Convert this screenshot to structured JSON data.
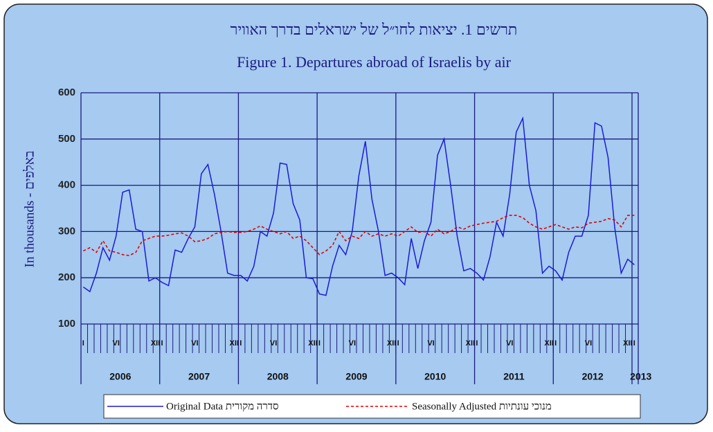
{
  "chart_data": {
    "type": "line",
    "title_he": "תרשים 1. יציאות לחו״ל של ישראלים בדרך האוויר",
    "title": "Figure 1. Departures abroad of Israelis by air",
    "y_label": "In thousands - באלפים",
    "categories": [
      "I",
      null,
      null,
      null,
      null,
      "VI",
      null,
      null,
      null,
      null,
      null,
      "XII",
      "I",
      null,
      null,
      null,
      null,
      "VI",
      null,
      null,
      null,
      null,
      null,
      "XII",
      "I",
      null,
      null,
      null,
      null,
      "VI",
      null,
      null,
      null,
      null,
      null,
      "XII",
      "I",
      null,
      null,
      null,
      null,
      "VI",
      null,
      null,
      null,
      null,
      null,
      "XII",
      "I",
      null,
      null,
      null,
      null,
      "VI",
      null,
      null,
      null,
      null,
      null,
      "XII",
      "I",
      null,
      null,
      null,
      null,
      "VI",
      null,
      null,
      null,
      null,
      null,
      "XII",
      "I",
      null,
      null,
      null,
      null,
      "VI",
      null,
      null,
      null,
      null,
      null,
      "XII",
      "I"
    ],
    "years": [
      "2006",
      "2007",
      "2008",
      "2009",
      "2010",
      "2011",
      "2012",
      "2013"
    ],
    "series": [
      {
        "name": "Original Data סדרה מקורית",
        "color": "#1a1ad6",
        "dash": false,
        "values": [
          180,
          170,
          210,
          265,
          238,
          290,
          385,
          390,
          305,
          300,
          193,
          200,
          190,
          183,
          260,
          255,
          285,
          310,
          425,
          445,
          380,
          300,
          210,
          205,
          205,
          193,
          225,
          300,
          290,
          340,
          448,
          445,
          360,
          325,
          200,
          198,
          165,
          162,
          225,
          270,
          250,
          300,
          420,
          495,
          370,
          300,
          205,
          210,
          200,
          185,
          285,
          220,
          280,
          320,
          465,
          500,
          400,
          290,
          215,
          220,
          210,
          195,
          245,
          320,
          290,
          380,
          515,
          545,
          400,
          345,
          210,
          225,
          215,
          195,
          255,
          290,
          290,
          335,
          535,
          528,
          460,
          310,
          210,
          240,
          228
        ]
      },
      {
        "name": "Seasonally Adjusted מנוכי עונתיות",
        "color": "#e00000",
        "dash": true,
        "values": [
          258,
          265,
          255,
          280,
          258,
          255,
          250,
          248,
          255,
          280,
          285,
          290,
          290,
          292,
          295,
          297,
          290,
          278,
          280,
          285,
          295,
          298,
          300,
          298,
          298,
          300,
          305,
          312,
          305,
          300,
          295,
          300,
          285,
          290,
          280,
          265,
          250,
          258,
          270,
          300,
          280,
          290,
          285,
          300,
          290,
          295,
          290,
          295,
          290,
          300,
          310,
          298,
          300,
          290,
          305,
          295,
          300,
          310,
          305,
          312,
          315,
          318,
          320,
          322,
          330,
          335,
          335,
          330,
          318,
          310,
          305,
          310,
          315,
          310,
          305,
          310,
          308,
          318,
          320,
          322,
          328,
          325,
          310,
          335,
          335
        ]
      }
    ],
    "ylim": [
      100,
      600
    ],
    "yticks": [
      100,
      200,
      300,
      400,
      500,
      600
    ],
    "grid": true
  }
}
